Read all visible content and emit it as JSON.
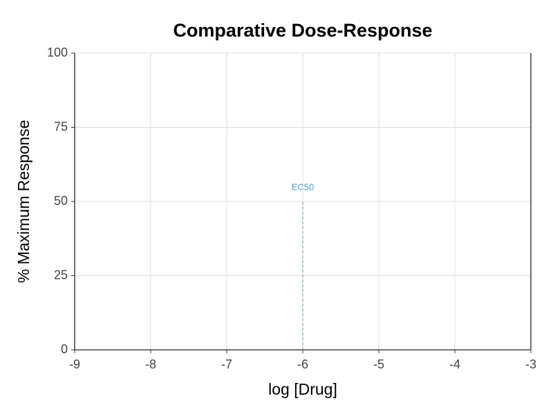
{
  "chart_data": {
    "type": "line",
    "title": "Comparative Dose-Response",
    "x_label": "log [Drug]",
    "y_label": "% Maximum Response",
    "xlim": [
      -9,
      -3
    ],
    "xticks": [
      -9,
      -8,
      -7,
      -6,
      -5,
      -4,
      -3
    ],
    "ylim": [
      0,
      100
    ],
    "yticks": [
      0,
      25,
      50,
      75,
      100
    ],
    "grid": true,
    "annotations": [
      {
        "text": "EC50",
        "x": -6,
        "y": 50,
        "color": "#4a9fd4"
      }
    ]
  }
}
